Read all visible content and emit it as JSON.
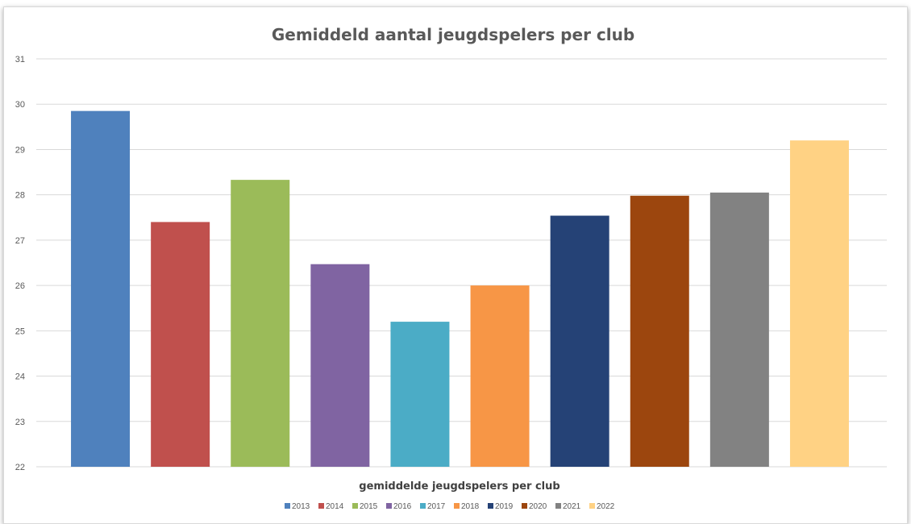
{
  "chart_data": {
    "type": "bar",
    "title": "Gemiddeld aantal jeugdspelers per club",
    "xlabel": "gemiddelde jeugdspelers per club",
    "ylabel": "",
    "ylim": [
      22,
      31
    ],
    "yticks": [
      "22",
      "23",
      "24",
      "25",
      "26",
      "27",
      "28",
      "29",
      "30",
      "31"
    ],
    "grid": true,
    "legend_position": "bottom",
    "categories": [
      "gemiddelde jeugdspelers per club"
    ],
    "series": [
      {
        "name": "2013",
        "values": [
          29.85
        ],
        "color": "#4F81BD"
      },
      {
        "name": "2014",
        "values": [
          27.4
        ],
        "color": "#C0504D"
      },
      {
        "name": "2015",
        "values": [
          28.33
        ],
        "color": "#9BBB59"
      },
      {
        "name": "2016",
        "values": [
          26.47
        ],
        "color": "#8064A2"
      },
      {
        "name": "2017",
        "values": [
          25.2
        ],
        "color": "#4BACC6"
      },
      {
        "name": "2018",
        "values": [
          26.0
        ],
        "color": "#F79646"
      },
      {
        "name": "2019",
        "values": [
          27.54
        ],
        "color": "#254276"
      },
      {
        "name": "2020",
        "values": [
          27.98
        ],
        "color": "#9C460E"
      },
      {
        "name": "2021",
        "values": [
          28.05
        ],
        "color": "#828282"
      },
      {
        "name": "2022",
        "values": [
          29.2
        ],
        "color": "#FFD284"
      }
    ]
  }
}
